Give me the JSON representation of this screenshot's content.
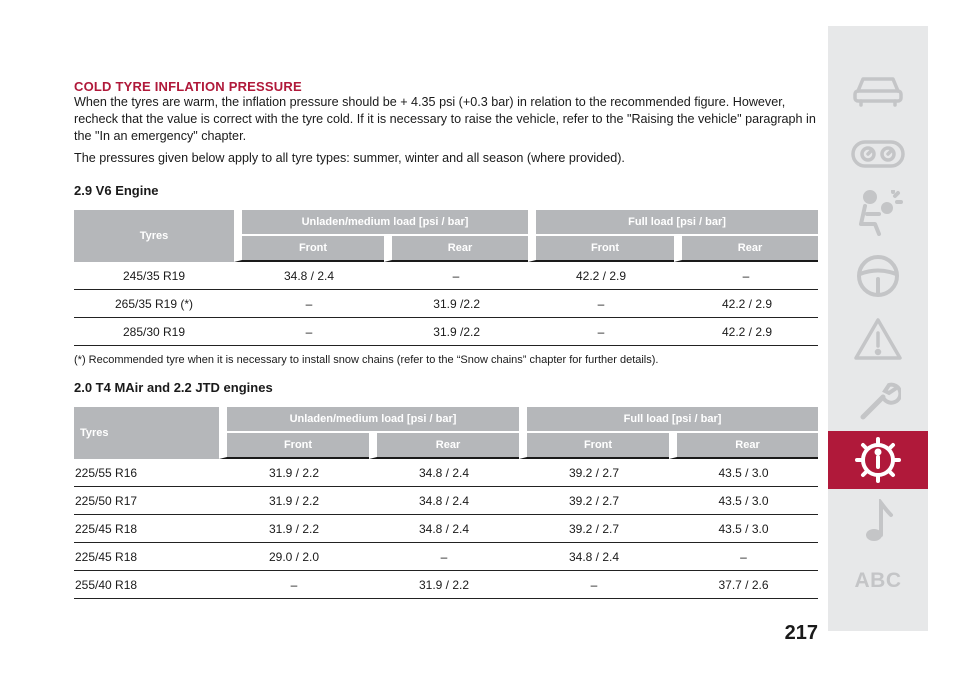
{
  "section": {
    "title": "COLD TYRE INFLATION PRESSURE",
    "paragraph1": "When the tyres are warm, the inflation pressure should be + 4.35 psi (+0.3 bar) in relation to the recommended figure. However, recheck that the value is correct with the tyre cold. If it is necessary to raise the vehicle, refer to the \"Raising the vehicle\" paragraph in the \"In an emergency\" chapter.",
    "paragraph2": "The pressures given below apply to all tyre types: summer, winter and all season (where provided)."
  },
  "table1": {
    "title": "2.9 V6 Engine",
    "col_tyres": "Tyres",
    "group_unladen": "Unladen/medium load [psi / bar]",
    "group_full": "Full load [psi / bar]",
    "front": "Front",
    "rear": "Rear",
    "rows": [
      {
        "tyre": "245/35 R19",
        "unladen_front": "34.8 / 2.4",
        "unladen_rear": "–",
        "full_front": "42.2 / 2.9",
        "full_rear": "–"
      },
      {
        "tyre": "265/35 R19 (*)",
        "unladen_front": "–",
        "unladen_rear": "31.9 /2.2",
        "full_front": "–",
        "full_rear": "42.2 / 2.9"
      },
      {
        "tyre": "285/30 R19",
        "unladen_front": "–",
        "unladen_rear": "31.9 /2.2",
        "full_front": "–",
        "full_rear": "42.2 / 2.9"
      }
    ],
    "footnote": "(*) Recommended tyre when it is necessary to install snow chains (refer to the “Snow chains” chapter for further details)."
  },
  "table2": {
    "title": "2.0 T4 MAir and 2.2 JTD engines",
    "col_tyres": "Tyres",
    "group_unladen": "Unladen/medium load [psi / bar]",
    "group_full": "Full load [psi / bar]",
    "front": "Front",
    "rear": "Rear",
    "rows": [
      {
        "tyre": "225/55 R16",
        "unladen_front": "31.9 / 2.2",
        "unladen_rear": "34.8 / 2.4",
        "full_front": "39.2 / 2.7",
        "full_rear": "43.5 / 3.0"
      },
      {
        "tyre": "225/50 R17",
        "unladen_front": "31.9 / 2.2",
        "unladen_rear": "34.8 / 2.4",
        "full_front": "39.2 / 2.7",
        "full_rear": "43.5 / 3.0"
      },
      {
        "tyre": "225/45 R18",
        "unladen_front": "31.9 / 2.2",
        "unladen_rear": "34.8 / 2.4",
        "full_front": "39.2 / 2.7",
        "full_rear": "43.5 / 3.0"
      },
      {
        "tyre": "225/45 R18",
        "unladen_front": "29.0 / 2.0",
        "unladen_rear": "–",
        "full_front": "34.8 / 2.4",
        "full_rear": "–"
      },
      {
        "tyre": "255/40 R18",
        "unladen_front": "–",
        "unladen_rear": "31.9 / 2.2",
        "full_front": "–",
        "full_rear": "37.7 / 2.6"
      }
    ]
  },
  "page_number": "217",
  "sidebar": {
    "icons": [
      "car-icon",
      "dashboard-gauges-icon",
      "airbag-person-icon",
      "steering-wheel-icon",
      "warning-triangle-icon",
      "wrench-icon",
      "technical-data-gear-icon",
      "music-note-icon"
    ],
    "active_icon": "technical-data-gear-icon",
    "index_label": "ABC"
  },
  "colors": {
    "accent": "#b0193a",
    "header_gray": "#b5b7ba",
    "sidebar_bg": "#e7e8e9",
    "sidebar_icon": "#c4c5c7"
  }
}
